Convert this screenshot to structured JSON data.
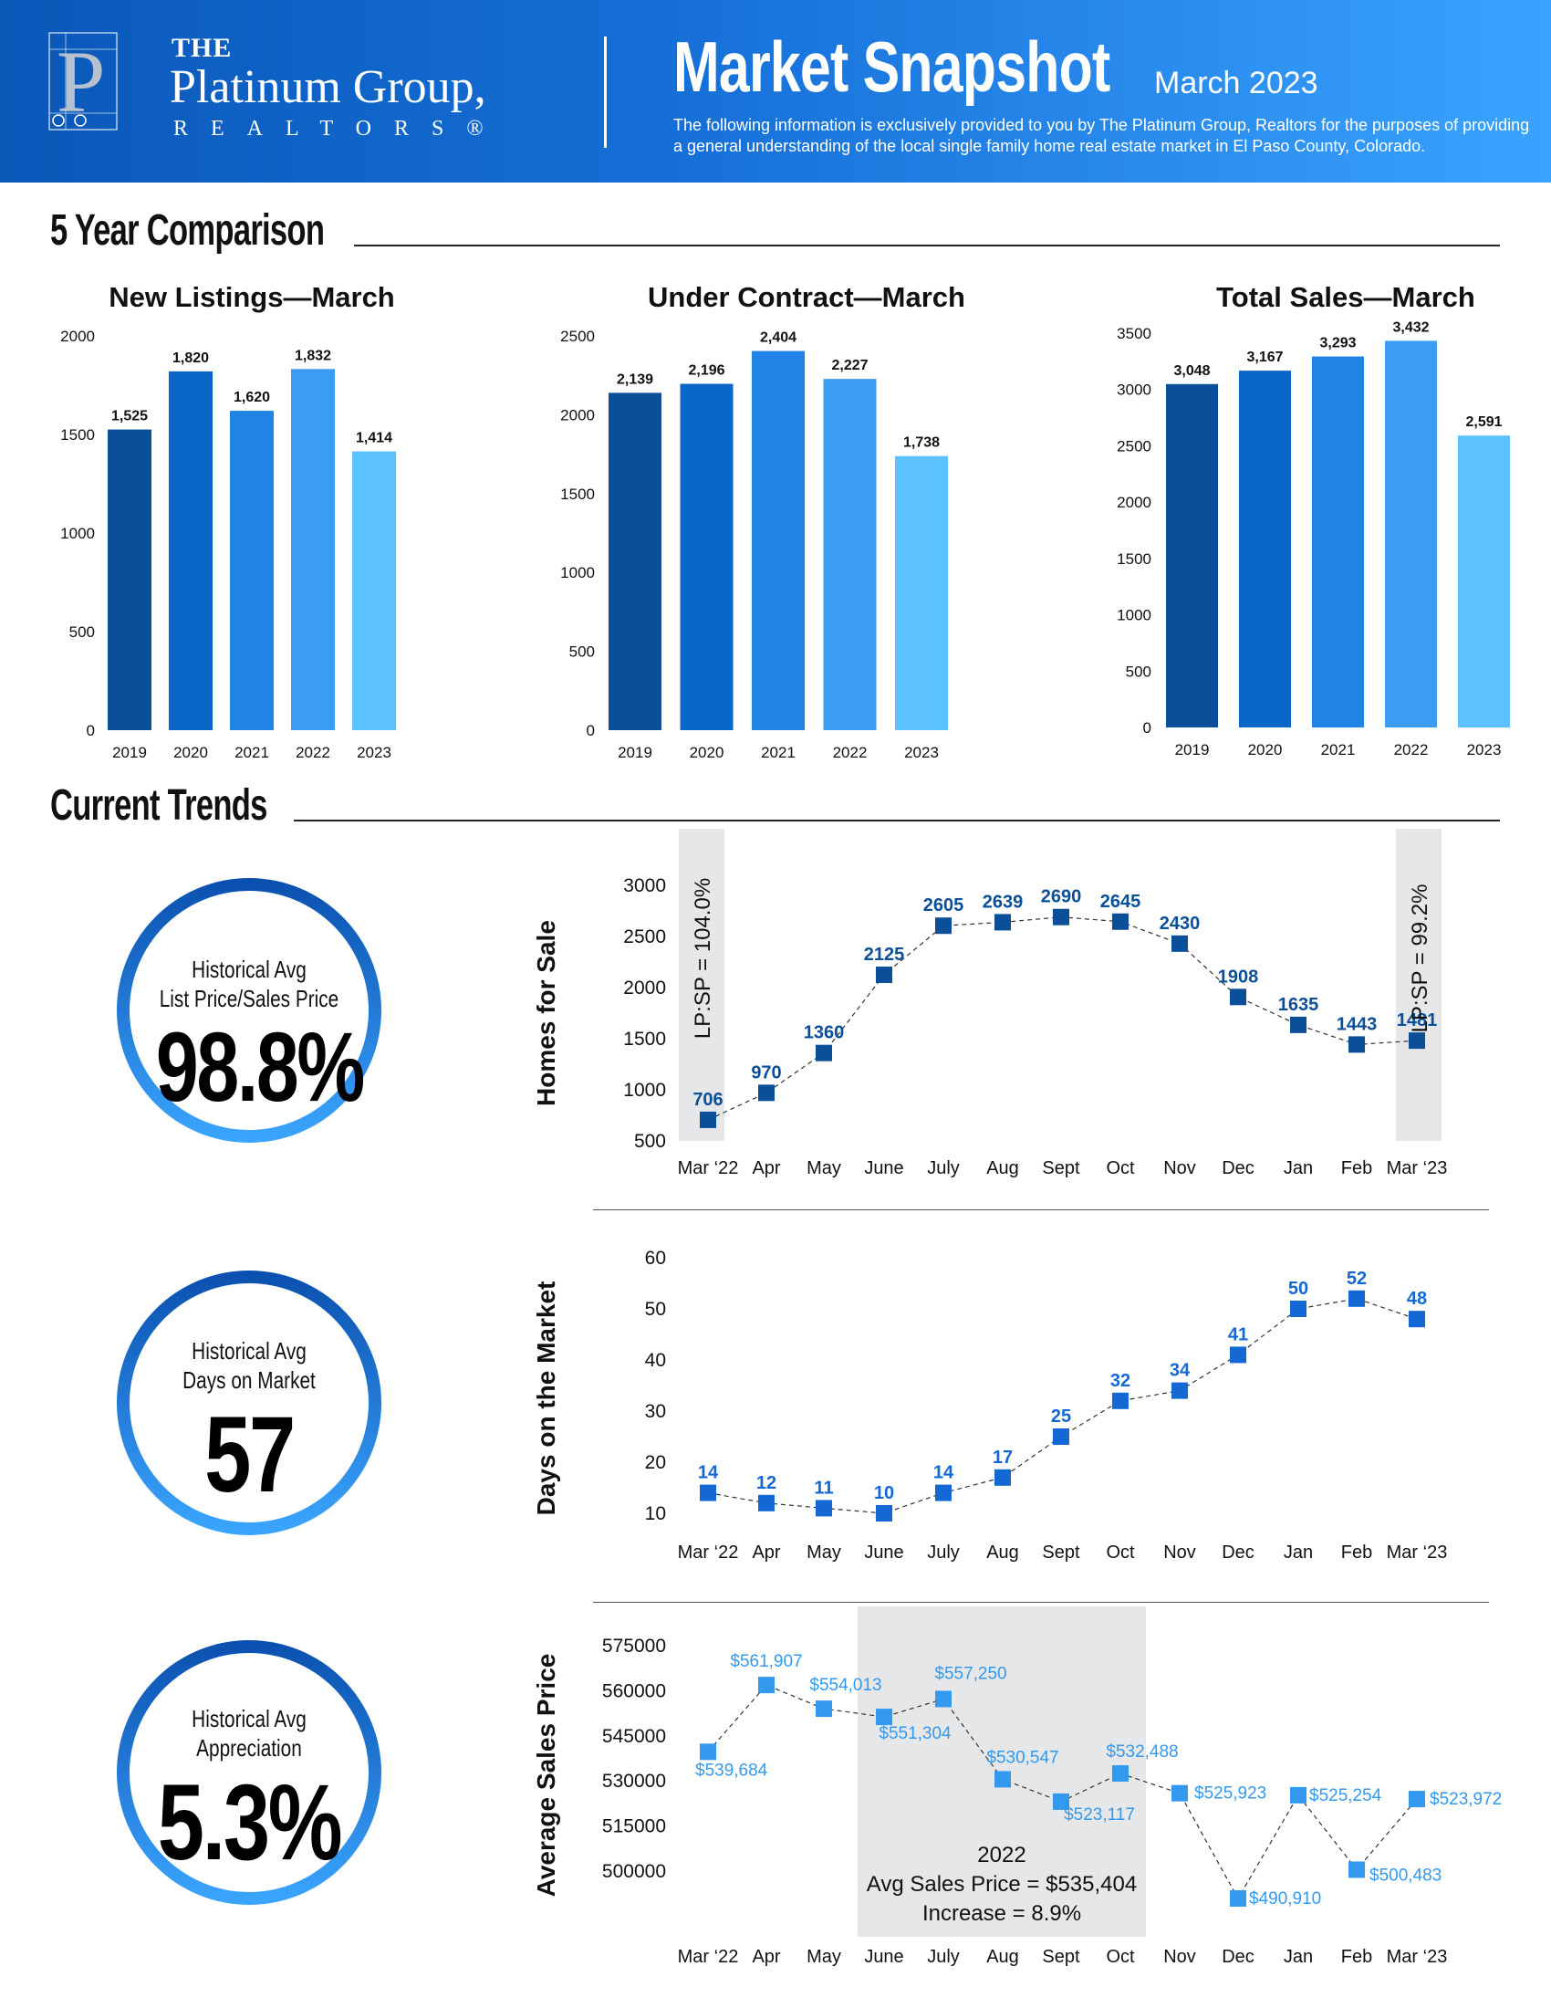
{
  "header": {
    "brand_the": "THE",
    "brand_name": "Platinum Group,",
    "brand_realtors": "REALTORS®",
    "logo_letter": "P",
    "title": "Market Snapshot",
    "date": "March 2023",
    "description": "The following information is exclusively provided to you by The Platinum Group, Realtors for the purposes of providing a general understanding of the local single family home real estate market in El Paso County, Colorado."
  },
  "sections": {
    "five_year": "5 Year Comparison",
    "current_trends": "Current Trends"
  },
  "colors": {
    "bars": [
      "#0a4f98",
      "#0b66c9",
      "#1f84e6",
      "#3a9df2",
      "#5bc1ff"
    ],
    "trend_dark": "#0a4f98",
    "trend_mid": "#1468d4",
    "trend_light": "#3399ee",
    "band": "#e6e7e8"
  },
  "stats": [
    {
      "label_1": "Historical Avg",
      "label_2": "List Price/Sales Price",
      "value": "98.8%"
    },
    {
      "label_1": "Historical Avg",
      "label_2": "Days on Market",
      "value": "57"
    },
    {
      "label_1": "Historical Avg",
      "label_2": "Appreciation",
      "value": "5.3%"
    }
  ],
  "chart_data": [
    {
      "type": "bar",
      "title": "New Listings—March",
      "categories": [
        "2019",
        "2020",
        "2021",
        "2022",
        "2023"
      ],
      "values": [
        1525,
        1820,
        1620,
        1832,
        1414
      ],
      "value_labels": [
        "1,525",
        "1,820",
        "1,620",
        "1,832",
        "1,414"
      ],
      "yticks": [
        0,
        500,
        1000,
        1500,
        2000
      ],
      "ylim": [
        0,
        2000
      ]
    },
    {
      "type": "bar",
      "title": "Under Contract—March",
      "categories": [
        "2019",
        "2020",
        "2021",
        "2022",
        "2023"
      ],
      "values": [
        2139,
        2196,
        2404,
        2227,
        1738
      ],
      "value_labels": [
        "2,139",
        "2,196",
        "2,404",
        "2,227",
        "1,738"
      ],
      "yticks": [
        0,
        500,
        1000,
        1500,
        2000,
        2500
      ],
      "ylim": [
        0,
        2500
      ]
    },
    {
      "type": "bar",
      "title": "Total Sales—March",
      "categories": [
        "2019",
        "2020",
        "2021",
        "2022",
        "2023"
      ],
      "values": [
        3048,
        3167,
        3293,
        3432,
        2591
      ],
      "value_labels": [
        "3,048",
        "3,167",
        "3,293",
        "3,432",
        "2,591"
      ],
      "yticks": [
        0,
        500,
        1000,
        1500,
        2000,
        2500,
        3000,
        3500
      ],
      "ylim": [
        0,
        3500
      ]
    },
    {
      "type": "line",
      "ylabel": "Homes for Sale",
      "categories": [
        "Mar ‘22",
        "Apr",
        "May",
        "June",
        "July",
        "Aug",
        "Sept",
        "Oct",
        "Nov",
        "Dec",
        "Jan",
        "Feb",
        "Mar ‘23"
      ],
      "values": [
        706,
        970,
        1360,
        2125,
        2605,
        2639,
        2690,
        2645,
        2430,
        1908,
        1635,
        1443,
        1481
      ],
      "value_labels": [
        "706",
        "970",
        "1360",
        "2125",
        "2605",
        "2639",
        "2690",
        "2645",
        "2430",
        "1908",
        "1635",
        "1443",
        "1481"
      ],
      "yticks": [
        500,
        1000,
        1500,
        2000,
        2500,
        3000
      ],
      "ylim": [
        500,
        3000
      ],
      "annotations": [
        "LP:SP = 104.0%",
        "LP:SP = 99.2%"
      ]
    },
    {
      "type": "line",
      "ylabel": "Days on the Market",
      "categories": [
        "Mar ‘22",
        "Apr",
        "May",
        "June",
        "July",
        "Aug",
        "Sept",
        "Oct",
        "Nov",
        "Dec",
        "Jan",
        "Feb",
        "Mar ‘23"
      ],
      "values": [
        14,
        12,
        11,
        10,
        14,
        17,
        25,
        32,
        34,
        41,
        50,
        52,
        48
      ],
      "value_labels": [
        "14",
        "12",
        "11",
        "10",
        "14",
        "17",
        "25",
        "32",
        "34",
        "41",
        "50",
        "52",
        "48"
      ],
      "yticks": [
        10,
        20,
        30,
        40,
        50,
        60
      ],
      "ylim": [
        10,
        60
      ]
    },
    {
      "type": "line",
      "ylabel": "Average Sales Price",
      "categories": [
        "Mar ‘22",
        "Apr",
        "May",
        "June",
        "July",
        "Aug",
        "Sept",
        "Oct",
        "Nov",
        "Dec",
        "Jan",
        "Feb",
        "Mar ‘23"
      ],
      "values": [
        539684,
        561907,
        554013,
        551304,
        557250,
        530547,
        523117,
        532488,
        525923,
        490910,
        525254,
        500483,
        523972
      ],
      "value_labels": [
        "$539,684",
        "$561,907",
        "$554,013",
        "$551,304",
        "$557,250",
        "$530,547",
        "$523,117",
        "$532,488",
        "$525,923",
        "$490,910",
        "$525,254",
        "$500,483",
        "$523,972"
      ],
      "yticks": [
        500000,
        515000,
        530000,
        545000,
        560000,
        575000
      ],
      "ylim": [
        490000,
        575000
      ],
      "annotation": {
        "line1": "2022",
        "line2": "Avg Sales Price = $535,404",
        "line3": "Increase = 8.9%"
      }
    }
  ]
}
